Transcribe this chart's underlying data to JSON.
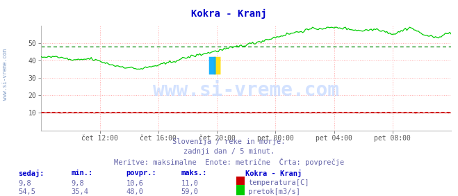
{
  "title": "Kokra - Kranj",
  "title_color": "#0000cc",
  "bg_color": "#ffffff",
  "plot_bg_color": "#ffffff",
  "x_tick_labels": [
    "čet 12:00",
    "čet 16:00",
    "čet 20:00",
    "pet 00:00",
    "pet 04:00",
    "pet 08:00"
  ],
  "ylim": [
    0,
    60
  ],
  "yticks": [
    10,
    20,
    30,
    40,
    50
  ],
  "grid_color": "#ffaaaa",
  "temp_color": "#cc0000",
  "flow_color": "#00cc00",
  "avg_flow_color": "#008800",
  "avg_temp_color": "#cc0000",
  "watermark": "www.si-vreme.com",
  "watermark_color": "#aaccff",
  "subtitle1": "Slovenija / reke in morje.",
  "subtitle2": "zadnji dan / 5 minut.",
  "subtitle3": "Meritve: maksimalne  Enote: metrične  Črta: povprečje",
  "subtitle_color": "#6666aa",
  "table_header_color": "#0000cc",
  "table_value_color": "#6666aa",
  "legend_title": "Kokra - Kranj",
  "legend_title_color": "#0000cc",
  "n_points": 288,
  "temp_min": 9.8,
  "temp_max": 11.0,
  "temp_avg": 10.6,
  "temp_current": 9.8,
  "flow_min": 35.4,
  "flow_max": 59.0,
  "flow_avg": 48.0,
  "flow_current": 54.5,
  "side_label": "www.si-vreme.com",
  "side_label_color": "#6688bb"
}
